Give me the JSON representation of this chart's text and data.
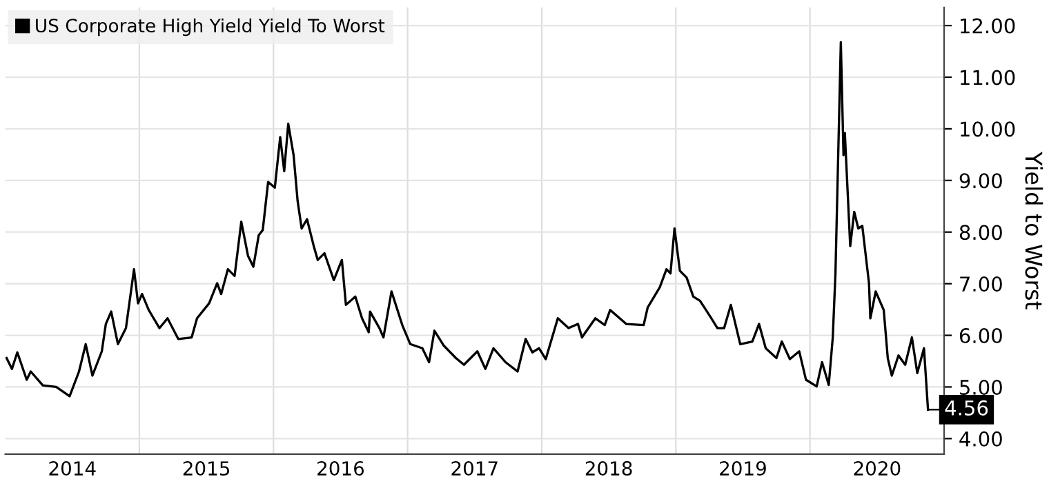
{
  "chart_data": {
    "type": "line",
    "ylabel": "Yield to Worst",
    "legend": "top left",
    "grid": true,
    "marker": "none",
    "line_style": "solid",
    "xlim": [
      2014.0,
      2021.0
    ],
    "xticks": [
      {
        "value": 2015,
        "label": null
      },
      {
        "value": 2016,
        "label": null
      },
      {
        "value": 2017,
        "label": null
      },
      {
        "value": 2018,
        "label": null
      },
      {
        "value": 2019,
        "label": null
      },
      {
        "value": 2020,
        "label": null
      },
      {
        "value": 2014.5,
        "label": "2014"
      },
      {
        "value": 2015.5,
        "label": "2015"
      },
      {
        "value": 2016.5,
        "label": "2016"
      },
      {
        "value": 2017.5,
        "label": "2017"
      },
      {
        "value": 2018.5,
        "label": "2018"
      },
      {
        "value": 2019.5,
        "label": "2019"
      },
      {
        "value": 2020.5,
        "label": "2020"
      }
    ],
    "ylim": [
      3.7,
      12.35
    ],
    "yticks": [
      {
        "value": 4,
        "label": "4.00"
      },
      {
        "value": 5,
        "label": "5.00"
      },
      {
        "value": 6,
        "label": "6.00"
      },
      {
        "value": 7,
        "label": "7.00"
      },
      {
        "value": 8,
        "label": "8.00"
      },
      {
        "value": 9,
        "label": "9.00"
      },
      {
        "value": 10,
        "label": "10.00"
      },
      {
        "value": 11,
        "label": "11.00"
      },
      {
        "value": 12,
        "label": "12.00"
      }
    ],
    "annotations": [
      {
        "text": "4.56",
        "x": 2020.88,
        "y": 4.56
      }
    ],
    "series": [
      {
        "name": "US Corporate High Yield Yield To Worst",
        "color": "#000000",
        "x": [
          2014.01,
          2014.05,
          2014.09,
          2014.16,
          2014.19,
          2014.28,
          2014.38,
          2014.48,
          2014.55,
          2014.6,
          2014.65,
          2014.72,
          2014.75,
          2014.79,
          2014.84,
          2014.9,
          2014.96,
          2014.99,
          2015.02,
          2015.07,
          2015.15,
          2015.21,
          2015.29,
          2015.39,
          2015.43,
          2015.52,
          2015.58,
          2015.61,
          2015.66,
          2015.71,
          2015.76,
          2015.81,
          2015.85,
          2015.89,
          2015.92,
          2015.96,
          2016.01,
          2016.05,
          2016.08,
          2016.11,
          2016.15,
          2016.18,
          2016.21,
          2016.25,
          2016.3,
          2016.33,
          2016.38,
          2016.45,
          2016.51,
          2016.54,
          2016.61,
          2016.66,
          2016.71,
          2016.72,
          2016.79,
          2016.82,
          2016.88,
          2016.96,
          2017.02,
          2017.11,
          2017.16,
          2017.2,
          2017.27,
          2017.36,
          2017.42,
          2017.52,
          2017.58,
          2017.64,
          2017.73,
          2017.82,
          2017.88,
          2017.93,
          2017.98,
          2018.03,
          2018.12,
          2018.2,
          2018.27,
          2018.3,
          2018.4,
          2018.47,
          2018.51,
          2018.63,
          2018.76,
          2018.79,
          2018.88,
          2018.93,
          2018.96,
          2018.99,
          2019.03,
          2019.08,
          2019.13,
          2019.18,
          2019.26,
          2019.31,
          2019.36,
          2019.41,
          2019.48,
          2019.57,
          2019.62,
          2019.67,
          2019.75,
          2019.79,
          2019.85,
          2019.92,
          2019.97,
          2020.05,
          2020.09,
          2020.14,
          2020.17,
          2020.19,
          2020.23,
          2020.25,
          2020.26,
          2020.3,
          2020.33,
          2020.36,
          2020.39,
          2020.44,
          2020.45,
          2020.49,
          2020.55,
          2020.58,
          2020.61,
          2020.66,
          2020.71,
          2020.76,
          2020.8,
          2020.85,
          2020.88
        ],
        "values": [
          5.56,
          5.35,
          5.67,
          5.14,
          5.3,
          5.03,
          5.0,
          4.82,
          5.3,
          5.83,
          5.22,
          5.69,
          6.22,
          6.46,
          5.83,
          6.14,
          7.28,
          6.62,
          6.8,
          6.49,
          6.14,
          6.33,
          5.93,
          5.96,
          6.33,
          6.62,
          7.01,
          6.8,
          7.28,
          7.15,
          8.2,
          7.54,
          7.33,
          7.94,
          8.04,
          8.97,
          8.86,
          9.84,
          9.18,
          10.1,
          9.49,
          8.6,
          8.07,
          8.25,
          7.73,
          7.46,
          7.59,
          7.07,
          7.46,
          6.59,
          6.75,
          6.33,
          6.06,
          6.46,
          6.14,
          5.96,
          6.85,
          6.2,
          5.83,
          5.75,
          5.48,
          6.09,
          5.8,
          5.56,
          5.43,
          5.69,
          5.35,
          5.75,
          5.48,
          5.3,
          5.93,
          5.67,
          5.75,
          5.54,
          6.33,
          6.14,
          6.22,
          5.96,
          6.33,
          6.2,
          6.49,
          6.22,
          6.2,
          6.54,
          6.93,
          7.28,
          7.2,
          8.07,
          7.25,
          7.12,
          6.75,
          6.67,
          6.35,
          6.14,
          6.14,
          6.59,
          5.83,
          5.88,
          6.22,
          5.75,
          5.56,
          5.88,
          5.54,
          5.69,
          5.14,
          5.01,
          5.48,
          5.04,
          5.96,
          7.2,
          11.68,
          9.49,
          9.92,
          7.73,
          8.39,
          8.07,
          8.12,
          7.01,
          6.33,
          6.85,
          6.49,
          5.56,
          5.22,
          5.61,
          5.43,
          5.96,
          5.27,
          5.75,
          4.56
        ]
      }
    ]
  }
}
